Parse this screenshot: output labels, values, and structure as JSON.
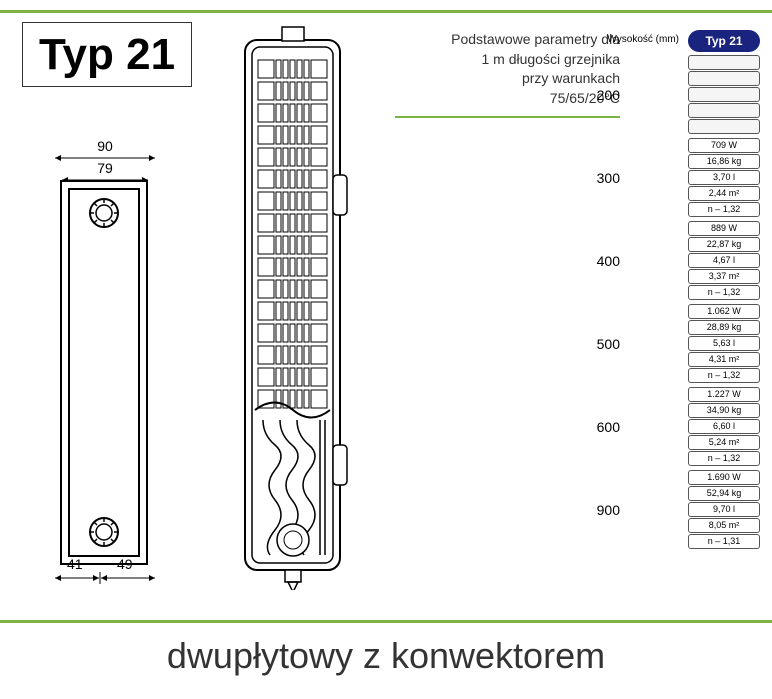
{
  "title": "Typ 21",
  "param_text": [
    "Podstawowe parametry dla",
    "1 m długości grzejnika",
    "przy warunkach",
    "75/65/20°C"
  ],
  "dimensions": {
    "width_outer": "90",
    "width_inner": "79",
    "bottom_left": "41",
    "bottom_right": "49"
  },
  "table": {
    "height_label": "Wysokość (mm)",
    "header_badge": "Typ 21",
    "groups": [
      {
        "height": "200",
        "rows": [
          "",
          "",
          "",
          "",
          ""
        ]
      },
      {
        "height": "300",
        "rows": [
          "709 W",
          "16,86 kg",
          "3,70 l",
          "2,44 m²",
          "n – 1,32"
        ]
      },
      {
        "height": "400",
        "rows": [
          "889 W",
          "22,87 kg",
          "4,67 l",
          "3,37 m²",
          "n – 1,32"
        ]
      },
      {
        "height": "500",
        "rows": [
          "1.062 W",
          "28,89 kg",
          "5,63 l",
          "4,31 m²",
          "n – 1,32"
        ]
      },
      {
        "height": "600",
        "rows": [
          "1.227 W",
          "34,90 kg",
          "6,60 l",
          "5,24 m²",
          "n – 1,32"
        ]
      },
      {
        "height": "900",
        "rows": [
          "1.690 W",
          "52,94 kg",
          "9,70 l",
          "8,05 m²",
          "n – 1,31"
        ]
      }
    ]
  },
  "bottom_text": "dwupłytowy z konwektorem",
  "colors": {
    "green": "#7cb342",
    "badge_bg": "#1a237e",
    "text": "#333333",
    "line": "#000000"
  },
  "drawing": {
    "side_view_size": [
      88,
      385
    ],
    "top_view_size": [
      135,
      565
    ]
  }
}
